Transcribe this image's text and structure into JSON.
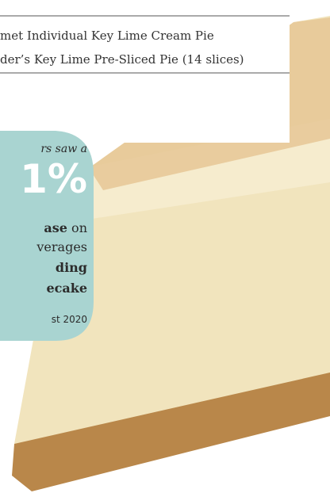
{
  "document": {
    "list": [
      "met Individual Key Lime Cream Pie",
      "der’s Key Lime Pre-Sliced Pie (14 slices)"
    ],
    "callout": {
      "lead": "rs saw a",
      "stat": "1%",
      "line1": "ase",
      "line1_rest": " on",
      "line2": "verages",
      "line3": "ding",
      "line4": "ecake",
      "note": "st 2020"
    }
  }
}
